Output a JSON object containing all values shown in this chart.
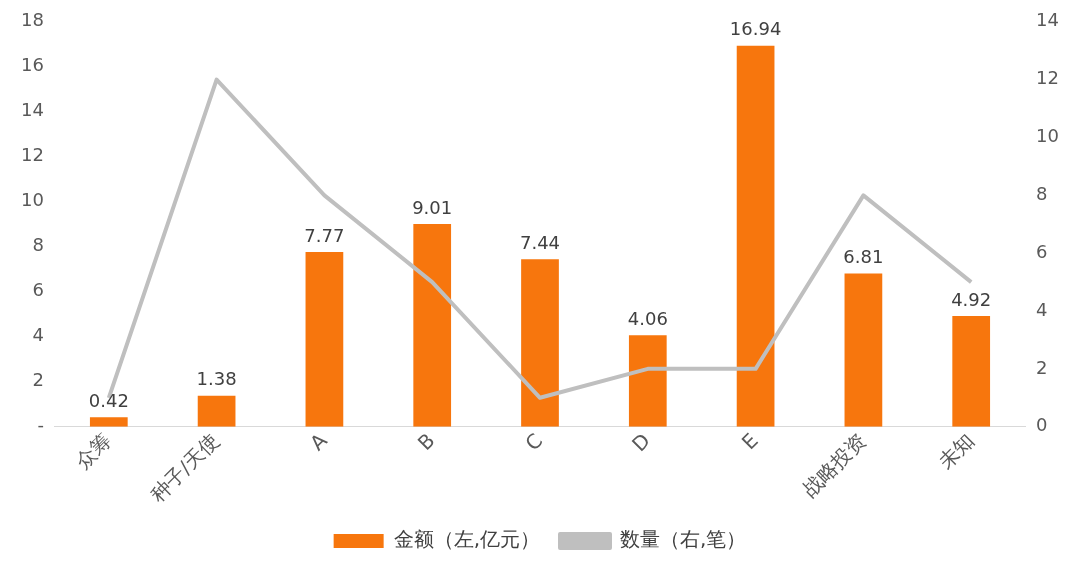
{
  "chart_data": {
    "type": "bar",
    "categories": [
      "众筹",
      "种子/天使",
      "A",
      "B",
      "C",
      "D",
      "E",
      "战略投资",
      "未知"
    ],
    "series": [
      {
        "name": "金额（左,亿元）",
        "color": "#f7760d",
        "values": [
          0.42,
          1.38,
          7.77,
          9.01,
          7.44,
          4.06,
          16.94,
          6.81,
          4.92
        ],
        "value_labels": [
          "0.42",
          "1.38",
          "7.77",
          "9.01",
          "7.44",
          "4.06",
          "16.94",
          "6.81",
          "4.92"
        ]
      },
      {
        "name": "数量（右,笔）",
        "type": "line",
        "axis": "y2",
        "color": "#bfbfbf",
        "values": [
          1,
          12,
          8,
          5,
          1,
          2,
          2,
          8,
          5
        ]
      }
    ],
    "ylim": [
      0,
      18
    ],
    "yticks": [
      {
        "value": 0,
        "label": "-"
      },
      2,
      4,
      6,
      8,
      10,
      12,
      14,
      16,
      18
    ],
    "y2lim": [
      0,
      14
    ],
    "y2ticks": [
      0,
      2,
      4,
      6,
      8,
      10,
      12,
      14
    ],
    "legend": "bottom",
    "marker": "none"
  }
}
